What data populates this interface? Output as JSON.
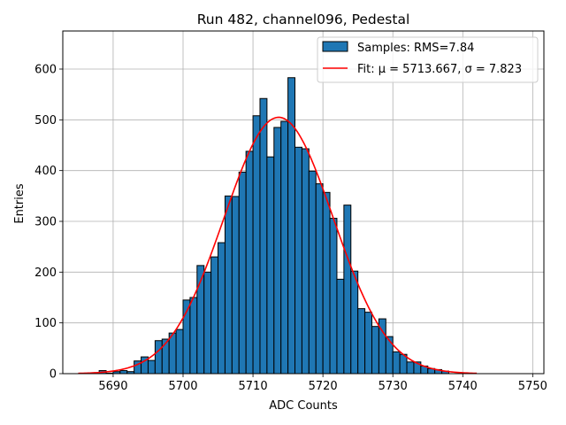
{
  "chart_data": {
    "type": "bar",
    "title": "Run 482, channel096, Pedestal",
    "xlabel": "ADC Counts",
    "ylabel": "Entries",
    "xlim": [
      5682.8,
      5751.6
    ],
    "ylim": [
      0,
      675
    ],
    "xticks": [
      5690,
      5700,
      5710,
      5720,
      5730,
      5740,
      5750
    ],
    "yticks": [
      0,
      100,
      200,
      300,
      400,
      500,
      600
    ],
    "grid": true,
    "legend_position": "top-right",
    "bin_width": 1,
    "series": [
      {
        "name": "Samples: RMS=7.84",
        "kind": "histogram",
        "color": "#1f77b4",
        "edge_color": "#000000",
        "bins": [
          {
            "x": 5688,
            "y": 6
          },
          {
            "x": 5689,
            "y": 1
          },
          {
            "x": 5690,
            "y": 4
          },
          {
            "x": 5691,
            "y": 6
          },
          {
            "x": 5692,
            "y": 4
          },
          {
            "x": 5693,
            "y": 25
          },
          {
            "x": 5694,
            "y": 33
          },
          {
            "x": 5695,
            "y": 26
          },
          {
            "x": 5696,
            "y": 65
          },
          {
            "x": 5697,
            "y": 68
          },
          {
            "x": 5698,
            "y": 80
          },
          {
            "x": 5699,
            "y": 87
          },
          {
            "x": 5700,
            "y": 145
          },
          {
            "x": 5701,
            "y": 150
          },
          {
            "x": 5702,
            "y": 213
          },
          {
            "x": 5703,
            "y": 200
          },
          {
            "x": 5704,
            "y": 230
          },
          {
            "x": 5705,
            "y": 258
          },
          {
            "x": 5706,
            "y": 350
          },
          {
            "x": 5707,
            "y": 349
          },
          {
            "x": 5708,
            "y": 397
          },
          {
            "x": 5709,
            "y": 438
          },
          {
            "x": 5710,
            "y": 508
          },
          {
            "x": 5711,
            "y": 542
          },
          {
            "x": 5712,
            "y": 427
          },
          {
            "x": 5713,
            "y": 485
          },
          {
            "x": 5714,
            "y": 497
          },
          {
            "x": 5715,
            "y": 583
          },
          {
            "x": 5716,
            "y": 446
          },
          {
            "x": 5717,
            "y": 443
          },
          {
            "x": 5718,
            "y": 399
          },
          {
            "x": 5719,
            "y": 374
          },
          {
            "x": 5720,
            "y": 357
          },
          {
            "x": 5721,
            "y": 306
          },
          {
            "x": 5722,
            "y": 186
          },
          {
            "x": 5723,
            "y": 332
          },
          {
            "x": 5724,
            "y": 202
          },
          {
            "x": 5725,
            "y": 128
          },
          {
            "x": 5726,
            "y": 121
          },
          {
            "x": 5727,
            "y": 93
          },
          {
            "x": 5728,
            "y": 108
          },
          {
            "x": 5729,
            "y": 73
          },
          {
            "x": 5730,
            "y": 43
          },
          {
            "x": 5731,
            "y": 38
          },
          {
            "x": 5732,
            "y": 23
          },
          {
            "x": 5733,
            "y": 23
          },
          {
            "x": 5734,
            "y": 15
          },
          {
            "x": 5735,
            "y": 10
          },
          {
            "x": 5736,
            "y": 8
          },
          {
            "x": 5737,
            "y": 5
          }
        ]
      },
      {
        "name": "Fit: μ = 5713.667, σ = 7.823",
        "kind": "gaussian_fit",
        "color": "#ff0000",
        "mu": 5713.667,
        "sigma": 7.823,
        "amplitude": 505,
        "x_range": [
          5685,
          5742
        ]
      }
    ]
  }
}
